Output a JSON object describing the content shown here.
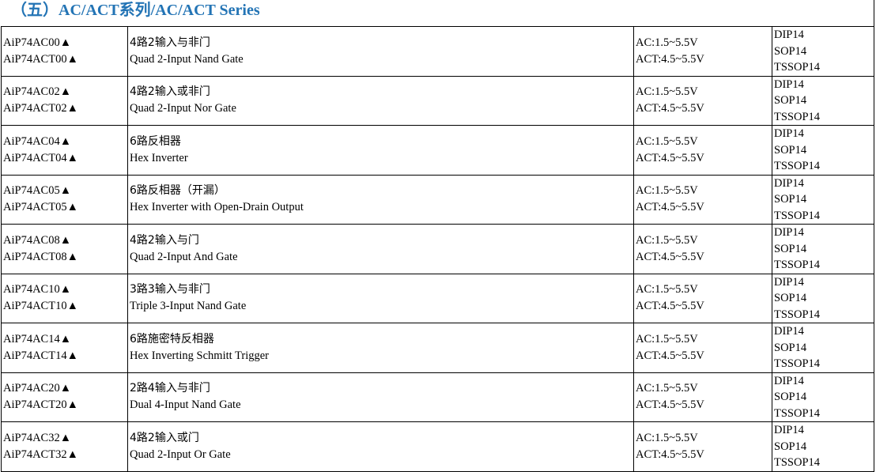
{
  "title": "（五）AC/ACT系列/AC/ACT Series",
  "rows": [
    {
      "parts": [
        "AiP74AC00▲",
        "AiP74ACT00▲"
      ],
      "cn": "4路2输入与非门",
      "en": "Quad 2-Input Nand Gate",
      "v": [
        "AC:1.5~5.5V",
        "ACT:4.5~5.5V"
      ],
      "pkg": [
        "DIP14",
        "SOP14",
        "TSSOP14"
      ]
    },
    {
      "parts": [
        "AiP74AC02▲",
        "AiP74ACT02▲"
      ],
      "cn": "4路2输入或非门",
      "en": "Quad 2-Input Nor Gate",
      "v": [
        "AC:1.5~5.5V",
        "ACT:4.5~5.5V"
      ],
      "pkg": [
        "DIP14",
        "SOP14",
        "TSSOP14"
      ]
    },
    {
      "parts": [
        "AiP74AC04▲",
        "AiP74ACT04▲"
      ],
      "cn": "6路反相器",
      "en": "Hex Inverter",
      "v": [
        "AC:1.5~5.5V",
        "ACT:4.5~5.5V"
      ],
      "pkg": [
        "DIP14",
        "SOP14",
        "TSSOP14"
      ]
    },
    {
      "parts": [
        "AiP74AC05▲",
        "AiP74ACT05▲"
      ],
      "cn": "6路反相器（开漏）",
      "en": "Hex Inverter with Open-Drain Output",
      "v": [
        "AC:1.5~5.5V",
        "ACT:4.5~5.5V"
      ],
      "pkg": [
        "DIP14",
        "SOP14",
        "TSSOP14"
      ]
    },
    {
      "parts": [
        "AiP74AC08▲",
        "AiP74ACT08▲"
      ],
      "cn": "4路2输入与门",
      "en": "Quad 2-Input And Gate",
      "v": [
        "AC:1.5~5.5V",
        "ACT:4.5~5.5V"
      ],
      "pkg": [
        "DIP14",
        "SOP14",
        "TSSOP14"
      ]
    },
    {
      "parts": [
        "AiP74AC10▲",
        "AiP74ACT10▲"
      ],
      "cn": "3路3输入与非门",
      "en": "Triple 3-Input Nand Gate",
      "v": [
        "AC:1.5~5.5V",
        "ACT:4.5~5.5V"
      ],
      "pkg": [
        "DIP14",
        "SOP14",
        "TSSOP14"
      ]
    },
    {
      "parts": [
        "AiP74AC14▲",
        "AiP74ACT14▲"
      ],
      "cn": "6路施密特反相器",
      "en": "Hex Inverting Schmitt Trigger",
      "v": [
        "AC:1.5~5.5V",
        "ACT:4.5~5.5V"
      ],
      "pkg": [
        "DIP14",
        "SOP14",
        "TSSOP14"
      ]
    },
    {
      "parts": [
        "AiP74AC20▲",
        "AiP74ACT20▲"
      ],
      "cn": "2路4输入与非门",
      "en": "Dual 4-Input Nand Gate",
      "v": [
        "AC:1.5~5.5V",
        "ACT:4.5~5.5V"
      ],
      "pkg": [
        "DIP14",
        "SOP14",
        "TSSOP14"
      ]
    },
    {
      "parts": [
        "AiP74AC32▲",
        "AiP74ACT32▲"
      ],
      "cn": "4路2输入或门",
      "en": "Quad 2-Input Or Gate",
      "v": [
        "AC:1.5~5.5V",
        "ACT:4.5~5.5V"
      ],
      "pkg": [
        "DIP14",
        "SOP14",
        "TSSOP14"
      ]
    }
  ]
}
